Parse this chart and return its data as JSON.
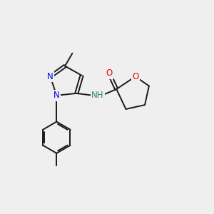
{
  "background_color": "#efefef",
  "bond_color": "#1a1a1a",
  "nitrogen_color": "#0000ee",
  "oxygen_color": "#ee0000",
  "nh_color": "#2e8b57",
  "font_size": 8.5,
  "figsize": [
    3.0,
    3.0
  ],
  "dpi": 100,
  "lw": 1.4,
  "xlim": [
    0,
    10
  ],
  "ylim": [
    0,
    10
  ]
}
